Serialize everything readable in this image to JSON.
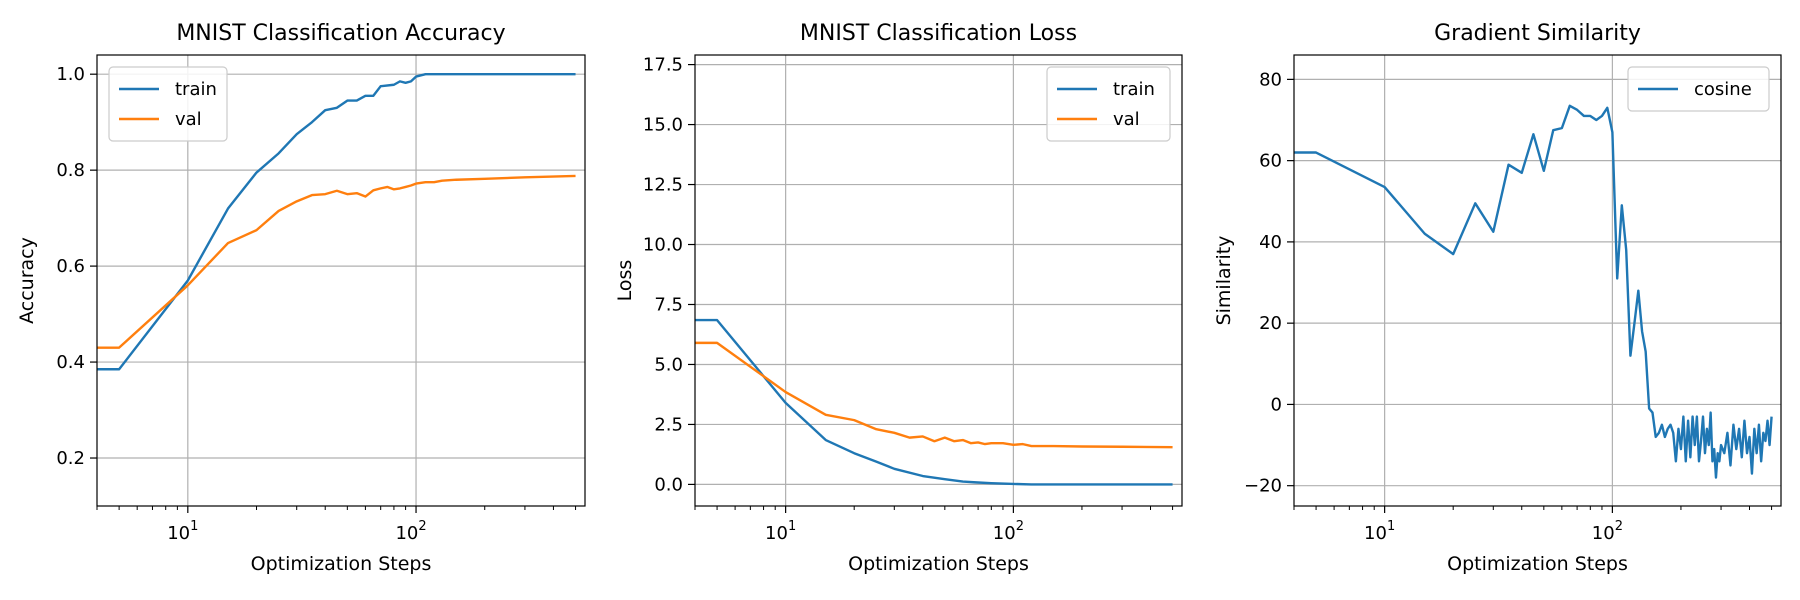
{
  "chart_data": [
    {
      "type": "line",
      "title": "MNIST Classification Accuracy",
      "xlabel": "Optimization Steps",
      "ylabel": "Accuracy",
      "xscale": "log",
      "xlim": [
        4,
        550
      ],
      "ylim": [
        0.1,
        1.04
      ],
      "xticks": [
        10,
        100
      ],
      "xtick_labels": [
        {
          "base": "10",
          "exp": "1"
        },
        {
          "base": "10",
          "exp": "2"
        }
      ],
      "yticks": [
        0.2,
        0.4,
        0.6,
        0.8,
        1.0
      ],
      "ytick_labels": [
        "0.2",
        "0.4",
        "0.6",
        "0.8",
        "1.0"
      ],
      "grid": true,
      "legend_position": "top-left",
      "series": [
        {
          "name": "train",
          "color": "#1f77b4",
          "x": [
            4,
            5,
            10,
            15,
            20,
            25,
            30,
            35,
            40,
            45,
            50,
            55,
            60,
            65,
            70,
            80,
            85,
            90,
            95,
            100,
            110,
            120,
            150,
            200,
            300,
            500
          ],
          "y": [
            0.385,
            0.385,
            0.57,
            0.72,
            0.795,
            0.835,
            0.875,
            0.9,
            0.925,
            0.93,
            0.945,
            0.945,
            0.955,
            0.955,
            0.975,
            0.978,
            0.985,
            0.982,
            0.985,
            0.995,
            1.0,
            1.0,
            1.0,
            1.0,
            1.0,
            1.0
          ]
        },
        {
          "name": "val",
          "color": "#ff7f0e",
          "x": [
            4,
            5,
            10,
            15,
            20,
            25,
            30,
            35,
            40,
            45,
            50,
            55,
            60,
            65,
            70,
            75,
            80,
            85,
            90,
            95,
            100,
            110,
            120,
            130,
            150,
            200,
            300,
            500
          ],
          "y": [
            0.43,
            0.43,
            0.56,
            0.648,
            0.675,
            0.715,
            0.735,
            0.748,
            0.75,
            0.757,
            0.75,
            0.752,
            0.745,
            0.758,
            0.762,
            0.765,
            0.76,
            0.762,
            0.765,
            0.768,
            0.772,
            0.775,
            0.775,
            0.778,
            0.78,
            0.782,
            0.785,
            0.788
          ]
        }
      ]
    },
    {
      "type": "line",
      "title": "MNIST Classification Loss",
      "xlabel": "Optimization Steps",
      "ylabel": "Loss",
      "xscale": "log",
      "xlim": [
        4,
        550
      ],
      "ylim": [
        -0.9,
        17.9
      ],
      "xticks": [
        10,
        100
      ],
      "xtick_labels": [
        {
          "base": "10",
          "exp": "1"
        },
        {
          "base": "10",
          "exp": "2"
        }
      ],
      "yticks": [
        0.0,
        2.5,
        5.0,
        7.5,
        10.0,
        12.5,
        15.0,
        17.5
      ],
      "ytick_labels": [
        "0.0",
        "2.5",
        "5.0",
        "7.5",
        "10.0",
        "12.5",
        "15.0",
        "17.5"
      ],
      "grid": true,
      "legend_position": "top-right",
      "series": [
        {
          "name": "train",
          "color": "#1f77b4",
          "x": [
            4,
            5,
            10,
            15,
            20,
            25,
            30,
            40,
            50,
            60,
            70,
            80,
            100,
            120,
            150,
            200,
            300,
            500
          ],
          "y": [
            6.85,
            6.85,
            3.4,
            1.85,
            1.3,
            0.95,
            0.65,
            0.35,
            0.22,
            0.12,
            0.08,
            0.05,
            0.02,
            0.0,
            0.0,
            0.0,
            0.0,
            0.0
          ]
        },
        {
          "name": "val",
          "color": "#ff7f0e",
          "x": [
            4,
            5,
            10,
            15,
            20,
            25,
            30,
            35,
            40,
            45,
            50,
            55,
            60,
            65,
            70,
            75,
            80,
            90,
            100,
            110,
            120,
            150,
            200,
            300,
            500
          ],
          "y": [
            5.9,
            5.9,
            3.85,
            2.9,
            2.68,
            2.3,
            2.15,
            1.95,
            2.0,
            1.8,
            1.95,
            1.8,
            1.85,
            1.72,
            1.75,
            1.68,
            1.72,
            1.72,
            1.65,
            1.68,
            1.6,
            1.6,
            1.58,
            1.57,
            1.55
          ]
        }
      ]
    },
    {
      "type": "line",
      "title": "Gradient Similarity",
      "xlabel": "Optimization Steps",
      "ylabel": "Similarity",
      "xscale": "log",
      "xlim": [
        4,
        550
      ],
      "ylim": [
        -25,
        86
      ],
      "xticks": [
        10,
        100
      ],
      "xtick_labels": [
        {
          "base": "10",
          "exp": "1"
        },
        {
          "base": "10",
          "exp": "2"
        }
      ],
      "yticks": [
        -20,
        0,
        20,
        40,
        60,
        80
      ],
      "ytick_labels": [
        "−20",
        "0",
        "20",
        "40",
        "60",
        "80"
      ],
      "grid": true,
      "legend_position": "top-right",
      "series": [
        {
          "name": "cosine",
          "color": "#1f77b4",
          "x": [
            4,
            5,
            10,
            15,
            20,
            25,
            30,
            35,
            40,
            45,
            50,
            55,
            60,
            65,
            70,
            75,
            80,
            85,
            90,
            95,
            100,
            105,
            110,
            115,
            120,
            125,
            130,
            135,
            140,
            145,
            150,
            155,
            160,
            165,
            170,
            175,
            180,
            185,
            190,
            195,
            200,
            205,
            210,
            215,
            220,
            225,
            230,
            235,
            240,
            245,
            250,
            255,
            260,
            265,
            270,
            275,
            280,
            285,
            290,
            295,
            300,
            310,
            320,
            330,
            340,
            350,
            360,
            370,
            380,
            390,
            400,
            410,
            420,
            430,
            440,
            450,
            460,
            470,
            480,
            490,
            500
          ],
          "y": [
            62,
            62,
            53.5,
            42,
            37,
            49.5,
            42.5,
            59,
            57,
            66.5,
            57.5,
            67.5,
            68,
            73.5,
            72.5,
            71,
            71,
            70,
            71,
            73,
            67,
            31,
            49,
            38,
            12,
            20,
            28,
            18,
            13,
            -1,
            -2,
            -8,
            -7,
            -5,
            -8,
            -6,
            -5,
            -7,
            -14,
            -6,
            -11,
            -3,
            -14,
            -4,
            -13,
            -3,
            -10,
            -3,
            -14,
            -9,
            -3,
            -12,
            -6,
            -10,
            -2,
            -14,
            -11,
            -18,
            -12,
            -14,
            -10,
            -12,
            -7,
            -15,
            -5,
            -11,
            -6,
            -13,
            -4,
            -12,
            -8,
            -17,
            -6,
            -12,
            -5,
            -14,
            -7,
            -9,
            -4,
            -10,
            -3
          ]
        }
      ]
    }
  ]
}
